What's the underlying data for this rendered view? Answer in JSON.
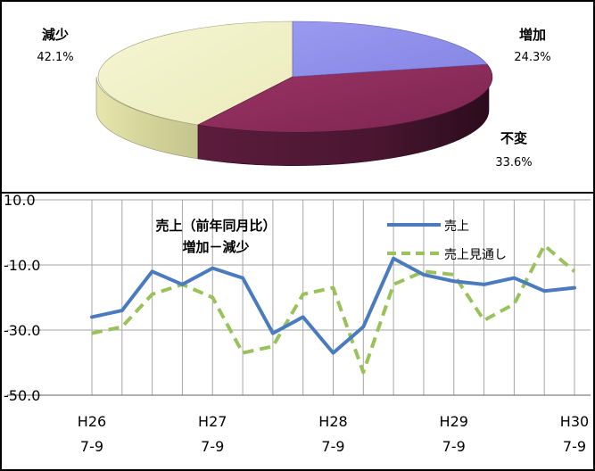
{
  "chart_data": [
    {
      "type": "pie",
      "title": "",
      "slices": [
        {
          "name": "増加",
          "value": 24.3,
          "label": "24.3%",
          "color": "#8b8be8"
        },
        {
          "name": "不変",
          "value": 33.6,
          "label": "33.6%",
          "color": "#8a2b5a"
        },
        {
          "name": "減少",
          "value": 42.1,
          "label": "42.1%",
          "color": "#efefc0"
        }
      ]
    },
    {
      "type": "line",
      "title": [
        "売上（前年同月比）",
        "増加－減少"
      ],
      "x_tick_labels": [
        {
          "top": "H26",
          "bottom": "7-9",
          "index": 0
        },
        {
          "top": "H27",
          "bottom": "7-9",
          "index": 4
        },
        {
          "top": "H28",
          "bottom": "7-9",
          "index": 8
        },
        {
          "top": "H29",
          "bottom": "7-9",
          "index": 12
        },
        {
          "top": "H30",
          "bottom": "7-9",
          "index": 16
        }
      ],
      "y_ticks": [
        "10.0",
        "-10.0",
        "-30.0",
        "-50.0"
      ],
      "ylim": [
        -50,
        10
      ],
      "grid": true,
      "legend_position": "top-right",
      "series": [
        {
          "name": "売上",
          "style": "solid",
          "color": "#4a7bbf",
          "values": [
            -26,
            -24,
            -12,
            -16,
            -11,
            -14,
            -31,
            -26,
            -37,
            -29,
            -8,
            -13,
            -15,
            -16,
            -14,
            -18,
            -17
          ]
        },
        {
          "name": "売上見通し",
          "style": "dashed",
          "color": "#99c35a",
          "values": [
            -31,
            -29,
            -19,
            -16,
            -20,
            -37,
            -35,
            -19,
            -17,
            -43,
            -16,
            -12,
            -13,
            -27,
            -22,
            -4,
            -12
          ]
        }
      ]
    }
  ]
}
